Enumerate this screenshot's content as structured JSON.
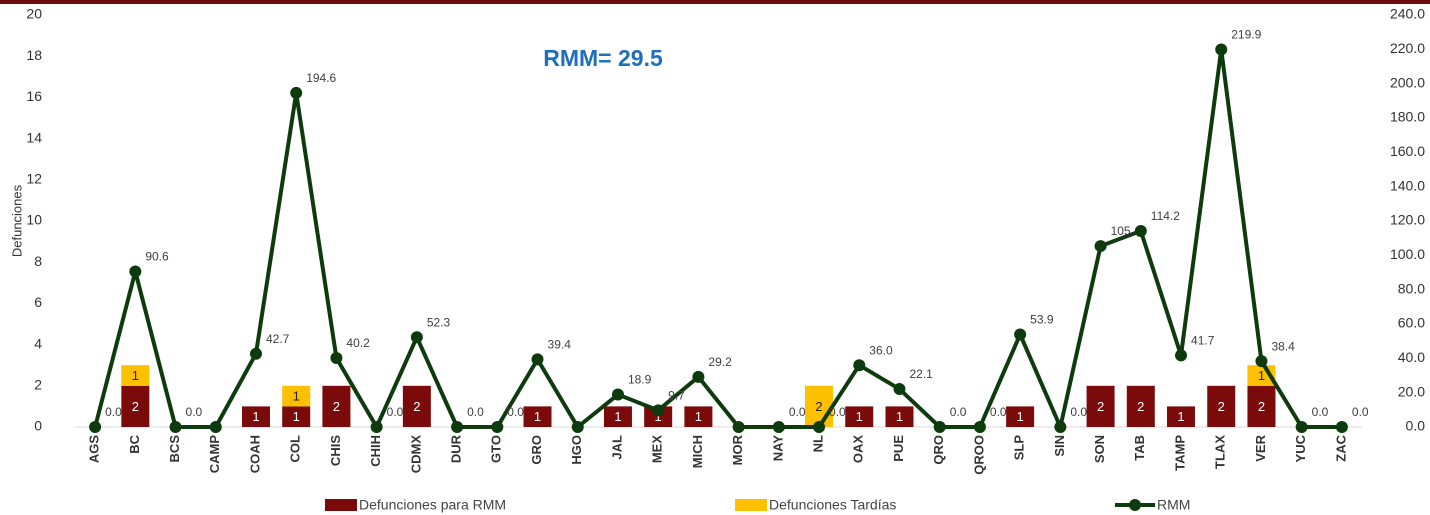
{
  "chart_data": {
    "type": "bar_line",
    "annotation": "RMM= 29.5",
    "y_label": "Defunciones",
    "categories": [
      "AGS",
      "BC",
      "BCS",
      "CAMP",
      "COAH",
      "COL",
      "CHIS",
      "CHIH",
      "CDMX",
      "DUR",
      "GTO",
      "GRO",
      "HGO",
      "JAL",
      "MEX",
      "MICH",
      "MOR",
      "NAY",
      "NL",
      "OAX",
      "PUE",
      "QRO",
      "QROO",
      "SLP",
      "SIN",
      "SON",
      "TAB",
      "TAMP",
      "TLAX",
      "VER",
      "YUC",
      "ZAC"
    ],
    "ylim": [
      0,
      20
    ],
    "yticks": [
      0,
      2,
      4,
      6,
      8,
      10,
      12,
      14,
      16,
      18,
      20
    ],
    "y2lim": [
      0,
      240
    ],
    "y2ticks": [
      {
        "value": 0,
        "label": "0.0"
      },
      {
        "value": 20,
        "label": "20.0"
      },
      {
        "value": 40,
        "label": "40.0"
      },
      {
        "value": 60,
        "label": "60.0"
      },
      {
        "value": 80,
        "label": "80.0"
      },
      {
        "value": 100,
        "label": "100.0"
      },
      {
        "value": 120,
        "label": "120.0"
      },
      {
        "value": 140,
        "label": "140.0"
      },
      {
        "value": 160,
        "label": "160.0"
      },
      {
        "value": 180,
        "label": "180.0"
      },
      {
        "value": 200,
        "label": "200.0"
      },
      {
        "value": 220,
        "label": "220.0"
      },
      {
        "value": 240,
        "label": "240.0"
      }
    ],
    "series": [
      {
        "name": "Defunciones para RMM",
        "type": "bar",
        "color": "#7b0a0a",
        "values": [
          0,
          2,
          0,
          0,
          1,
          1,
          2,
          0,
          2,
          0,
          0,
          1,
          0,
          1,
          1,
          1,
          0,
          0,
          0,
          1,
          1,
          0,
          0,
          1,
          0,
          2,
          2,
          1,
          2,
          2,
          0,
          0
        ]
      },
      {
        "name": "Defunciones Tardías",
        "type": "bar",
        "color": "#ffc000",
        "values": [
          0,
          1,
          0,
          0,
          0,
          1,
          0,
          0,
          0,
          0,
          0,
          0,
          0,
          0,
          0,
          0,
          0,
          0,
          2,
          0,
          0,
          0,
          0,
          0,
          0,
          0,
          0,
          0,
          0,
          1,
          0,
          0
        ]
      },
      {
        "name": "RMM",
        "type": "line",
        "axis": "y2",
        "color": "#0d3b0d",
        "values": [
          0,
          90.6,
          0,
          0,
          42.7,
          194.6,
          40.2,
          0,
          52.3,
          0,
          0,
          39.4,
          0,
          18.9,
          9.7,
          29.2,
          0,
          0,
          0,
          36.0,
          22.1,
          0,
          0,
          53.9,
          0,
          105.4,
          114.2,
          41.7,
          219.9,
          38.4,
          0,
          0
        ],
        "value_labels": [
          "0.0",
          "90.6",
          "0.0",
          null,
          "42.7",
          "194.6",
          "40.2",
          "0.0",
          "52.3",
          "0.0",
          "0.0",
          "39.4",
          null,
          "18.9",
          "9.7",
          "29.2",
          null,
          "0.0",
          "0.0",
          "36.0",
          "22.1",
          "0.0",
          "0.0",
          "53.9",
          "0.0",
          "105.4",
          "114.2",
          "41.7",
          "219.9",
          "38.4",
          "0.0",
          "0.0"
        ]
      }
    ]
  }
}
